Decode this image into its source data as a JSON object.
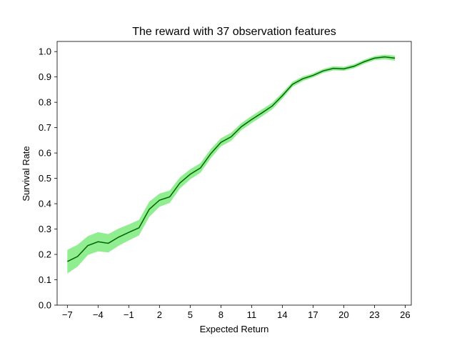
{
  "chart_data": {
    "type": "line",
    "title": "The reward with 37 observation features",
    "xlabel": "Expected Return",
    "ylabel": "Survival Rate",
    "xlim": [
      -8.0,
      26.6
    ],
    "ylim": [
      0.0,
      1.04
    ],
    "xticks": [
      -7,
      -4,
      -1,
      2,
      5,
      8,
      11,
      14,
      17,
      20,
      23,
      26
    ],
    "xtick_labels": [
      "−7",
      "−4",
      "−1",
      "2",
      "5",
      "8",
      "11",
      "14",
      "17",
      "20",
      "23",
      "26"
    ],
    "yticks": [
      0.0,
      0.1,
      0.2,
      0.3,
      0.4,
      0.5,
      0.6,
      0.7,
      0.8,
      0.9,
      1.0
    ],
    "ytick_labels": [
      "0.0",
      "0.1",
      "0.2",
      "0.3",
      "0.4",
      "0.5",
      "0.6",
      "0.7",
      "0.8",
      "0.9",
      "1.0"
    ],
    "grid": false,
    "legend": "none",
    "line_color": "#006400",
    "band_color": "#90ee90",
    "x": [
      -7,
      -6,
      -5,
      -4,
      -3,
      -2,
      -1,
      0,
      1,
      2,
      3,
      4,
      5,
      6,
      7,
      8,
      9,
      10,
      11,
      12,
      13,
      14,
      15,
      16,
      17,
      18,
      19,
      20,
      21,
      22,
      23,
      24,
      25
    ],
    "y": [
      0.172,
      0.192,
      0.235,
      0.25,
      0.244,
      0.268,
      0.287,
      0.305,
      0.378,
      0.414,
      0.427,
      0.482,
      0.516,
      0.541,
      0.597,
      0.642,
      0.664,
      0.704,
      0.732,
      0.758,
      0.785,
      0.826,
      0.871,
      0.893,
      0.906,
      0.924,
      0.934,
      0.932,
      0.942,
      0.96,
      0.974,
      0.979,
      0.974
    ],
    "y_lower": [
      0.125,
      0.152,
      0.198,
      0.212,
      0.208,
      0.234,
      0.255,
      0.275,
      0.348,
      0.388,
      0.403,
      0.46,
      0.496,
      0.522,
      0.579,
      0.626,
      0.648,
      0.69,
      0.718,
      0.744,
      0.772,
      0.814,
      0.861,
      0.884,
      0.898,
      0.916,
      0.926,
      0.924,
      0.934,
      0.952,
      0.966,
      0.97,
      0.964
    ],
    "y_upper": [
      0.218,
      0.238,
      0.272,
      0.288,
      0.28,
      0.302,
      0.318,
      0.336,
      0.408,
      0.44,
      0.452,
      0.504,
      0.536,
      0.56,
      0.615,
      0.658,
      0.68,
      0.718,
      0.746,
      0.772,
      0.798,
      0.838,
      0.881,
      0.902,
      0.914,
      0.932,
      0.942,
      0.94,
      0.95,
      0.968,
      0.982,
      0.988,
      0.984
    ]
  }
}
